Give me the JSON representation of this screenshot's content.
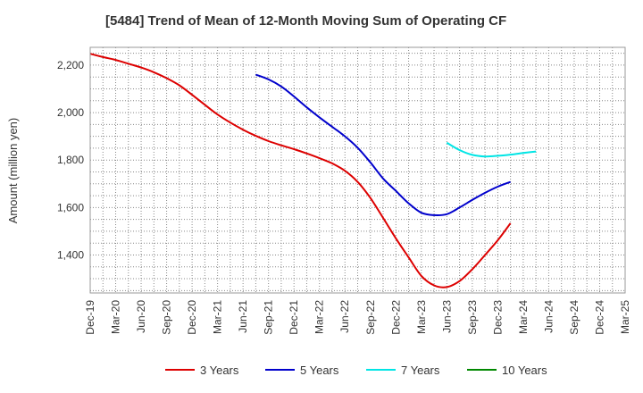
{
  "chart_data": {
    "type": "line",
    "title": "[5484]  Trend of Mean of 12-Month Moving Sum of Operating CF",
    "xlabel": "",
    "ylabel": "Amount (million yen)",
    "ylim": [
      1240,
      2275
    ],
    "yticks": [
      1400,
      1600,
      1800,
      2000,
      2200
    ],
    "ytick_labels": [
      "1,400",
      "1,600",
      "1,800",
      "2,000",
      "2,200"
    ],
    "categories": [
      "Dec-19",
      "Mar-20",
      "Jun-20",
      "Sep-20",
      "Dec-20",
      "Mar-21",
      "Jun-21",
      "Sep-21",
      "Dec-21",
      "Mar-22",
      "Jun-22",
      "Sep-22",
      "Dec-22",
      "Mar-23",
      "Jun-23",
      "Sep-23",
      "Dec-23",
      "Mar-24",
      "Jun-24",
      "Sep-24",
      "Dec-24",
      "Mar-25"
    ],
    "series": [
      {
        "name": "3 Years",
        "color": "#dd0000",
        "points": [
          [
            0,
            2248
          ],
          [
            0.5,
            2234
          ],
          [
            1,
            2222
          ],
          [
            1.5,
            2206
          ],
          [
            2,
            2190
          ],
          [
            2.5,
            2170
          ],
          [
            3,
            2145
          ],
          [
            3.5,
            2115
          ],
          [
            4,
            2075
          ],
          [
            4.5,
            2033
          ],
          [
            5,
            1992
          ],
          [
            5.5,
            1958
          ],
          [
            6,
            1928
          ],
          [
            6.5,
            1902
          ],
          [
            7,
            1880
          ],
          [
            7.5,
            1862
          ],
          [
            8,
            1846
          ],
          [
            8.5,
            1828
          ],
          [
            9,
            1808
          ],
          [
            9.5,
            1786
          ],
          [
            10,
            1755
          ],
          [
            10.5,
            1708
          ],
          [
            11,
            1640
          ],
          [
            11.5,
            1556
          ],
          [
            12,
            1470
          ],
          [
            12.5,
            1390
          ],
          [
            13,
            1312
          ],
          [
            13.5,
            1272
          ],
          [
            14,
            1265
          ],
          [
            14.5,
            1290
          ],
          [
            15,
            1340
          ],
          [
            15.5,
            1400
          ],
          [
            16,
            1462
          ],
          [
            16.5,
            1534
          ]
        ]
      },
      {
        "name": "5 Years",
        "color": "#0000cc",
        "points": [
          [
            6.5,
            2160
          ],
          [
            7,
            2140
          ],
          [
            7.5,
            2110
          ],
          [
            8,
            2068
          ],
          [
            8.5,
            2022
          ],
          [
            9,
            1980
          ],
          [
            9.5,
            1940
          ],
          [
            10,
            1900
          ],
          [
            10.5,
            1852
          ],
          [
            11,
            1790
          ],
          [
            11.5,
            1722
          ],
          [
            12,
            1670
          ],
          [
            12.5,
            1618
          ],
          [
            13,
            1578
          ],
          [
            13.5,
            1568
          ],
          [
            14,
            1572
          ],
          [
            14.5,
            1600
          ],
          [
            15,
            1632
          ],
          [
            15.5,
            1662
          ],
          [
            16,
            1688
          ],
          [
            16.5,
            1708
          ]
        ]
      },
      {
        "name": "7 Years",
        "color": "#00e5e5",
        "points": [
          [
            14,
            1873
          ],
          [
            14.5,
            1842
          ],
          [
            15,
            1822
          ],
          [
            15.5,
            1815
          ],
          [
            16,
            1818
          ],
          [
            16.5,
            1823
          ],
          [
            17,
            1830
          ],
          [
            17.5,
            1836
          ]
        ]
      },
      {
        "name": "10 Years",
        "color": "#008800",
        "points": []
      }
    ],
    "legend": "bottom"
  }
}
